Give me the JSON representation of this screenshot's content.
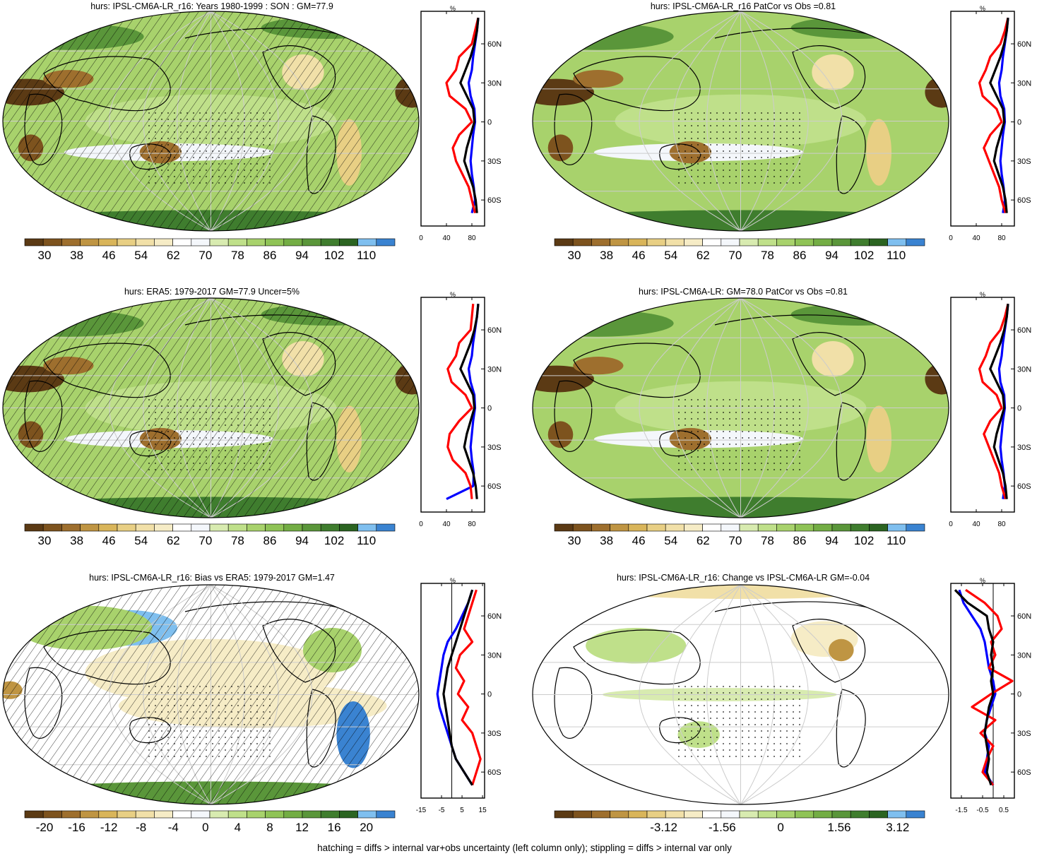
{
  "palette": [
    "#5b3a14",
    "#7d531e",
    "#9e6f2e",
    "#bf9543",
    "#d9b55a",
    "#e8cf84",
    "#f1e0a8",
    "#f6ecc6",
    "#ffffff",
    "#f4f7fb",
    "#d8ebb0",
    "#bfe08a",
    "#a8d26c",
    "#8fc356",
    "#73ad44",
    "#5a963a",
    "#3f7d2e",
    "#2b6421",
    "#7fbfef",
    "#3a83d1"
  ],
  "colors": {
    "obs_line": "#ff0000",
    "model_line": "#000000",
    "other_line": "#0000ff",
    "grid": "#cccccc",
    "coast": "#000000"
  },
  "panels": [
    {
      "title": "hurs: IPSL-CM6A-LR_r16: Years 1980-1999 : SON : GM=77.9",
      "cb_labels": [
        "30",
        "38",
        "46",
        "54",
        "62",
        "70",
        "78",
        "86",
        "94",
        "102",
        "110"
      ],
      "profile_xticks": [
        "0",
        "40",
        "80"
      ],
      "kind": "abs",
      "hatch": true
    },
    {
      "title": "hurs: IPSL-CM6A-LR_r16 PatCor vs Obs =0.81",
      "cb_labels": [
        "30",
        "38",
        "46",
        "54",
        "62",
        "70",
        "78",
        "86",
        "94",
        "102",
        "110"
      ],
      "profile_xticks": [
        "0",
        "40",
        "80"
      ],
      "kind": "abs",
      "hatch": false
    },
    {
      "title": "hurs: ERA5: 1979-2017 GM=77.9 Uncer=5%",
      "cb_labels": [
        "30",
        "38",
        "46",
        "54",
        "62",
        "70",
        "78",
        "86",
        "94",
        "102",
        "110"
      ],
      "profile_xticks": [
        "0",
        "40",
        "80"
      ],
      "kind": "abs",
      "hatch": true
    },
    {
      "title": "hurs: IPSL-CM6A-LR: GM=78.0 PatCor vs Obs =0.81",
      "cb_labels": [
        "30",
        "38",
        "46",
        "54",
        "62",
        "70",
        "78",
        "86",
        "94",
        "102",
        "110"
      ],
      "profile_xticks": [
        "0",
        "40",
        "80"
      ],
      "kind": "abs",
      "hatch": false
    },
    {
      "title": "hurs: IPSL-CM6A-LR_r16: Bias vs ERA5: 1979-2017  GM=1.47",
      "cb_labels": [
        "-20",
        "-16",
        "-12",
        "-8",
        "-4",
        "0",
        "4",
        "8",
        "12",
        "16",
        "20"
      ],
      "profile_xticks": [
        "-15",
        "-5",
        "5",
        "15"
      ],
      "kind": "bias",
      "hatch": true
    },
    {
      "title": "hurs: IPSL-CM6A-LR_r16: Change vs IPSL-CM6A-LR GM=-0.04",
      "cb_labels": [
        "-3.12",
        "-1.56",
        "0",
        "1.56",
        "3.12"
      ],
      "profile_xticks": [
        "-1.5",
        "-0.5",
        "0.5"
      ],
      "kind": "change",
      "hatch": false
    }
  ],
  "profile_unit": "%",
  "lat_labels": [
    "60N",
    "30N",
    "0",
    "30S",
    "60S"
  ],
  "footer": "hatching = diffs > internal var+obs uncertainty (left column only); stippling = diffs > internal var only",
  "chart_data": [
    {
      "type": "heatmap",
      "title": "hurs: IPSL-CM6A-LR_r16: Years 1980-1999 : SON : GM=77.9",
      "colorbar_ticks": [
        30,
        38,
        46,
        54,
        62,
        70,
        78,
        86,
        94,
        102,
        110
      ],
      "profile": {
        "lat_ticks": [
          "60N",
          "30N",
          "0",
          "30S",
          "60S"
        ],
        "x_ticks": [
          0,
          40,
          80
        ],
        "unit": "%",
        "series": [
          {
            "color": "red",
            "lat": [
              80,
              70,
              60,
              50,
              40,
              30,
              20,
              10,
              0,
              -10,
              -20,
              -30,
              -40,
              -50,
              -60,
              -70
            ],
            "values": [
              90,
              85,
              80,
              60,
              55,
              40,
              45,
              70,
              80,
              60,
              50,
              55,
              65,
              75,
              80,
              85
            ]
          },
          {
            "color": "black",
            "lat": [
              80,
              70,
              60,
              50,
              40,
              30,
              20,
              10,
              0,
              -10,
              -20,
              -30,
              -40,
              -50,
              -60,
              -70
            ],
            "values": [
              90,
              88,
              84,
              78,
              70,
              62,
              72,
              82,
              84,
              78,
              72,
              68,
              75,
              82,
              86,
              88
            ]
          },
          {
            "color": "blue",
            "lat": [
              80,
              70,
              60,
              50,
              40,
              30,
              20,
              10,
              0,
              -10,
              -20,
              -30,
              -40,
              -50,
              -60,
              -70
            ],
            "values": [
              90,
              88,
              85,
              82,
              80,
              75,
              78,
              84,
              85,
              82,
              80,
              78,
              80,
              83,
              85,
              80
            ]
          }
        ]
      }
    },
    {
      "type": "heatmap",
      "title": "hurs: IPSL-CM6A-LR_r16 PatCor vs Obs =0.81",
      "colorbar_ticks": [
        30,
        38,
        46,
        54,
        62,
        70,
        78,
        86,
        94,
        102,
        110
      ],
      "profile": {
        "lat_ticks": [
          "60N",
          "30N",
          "0",
          "30S",
          "60S"
        ],
        "x_ticks": [
          0,
          40,
          80
        ],
        "unit": "%",
        "series": [
          {
            "color": "red",
            "lat": [
              80,
              70,
              60,
              50,
              40,
              30,
              20,
              10,
              0,
              -10,
              -20,
              -30,
              -40,
              -50,
              -60,
              -70
            ],
            "values": [
              90,
              85,
              78,
              62,
              55,
              45,
              50,
              72,
              80,
              62,
              52,
              60,
              68,
              76,
              80,
              86
            ]
          },
          {
            "color": "black",
            "lat": [
              80,
              70,
              60,
              50,
              40,
              30,
              20,
              10,
              0,
              -10,
              -20,
              -30,
              -40,
              -50,
              -60,
              -70
            ],
            "values": [
              90,
              88,
              84,
              78,
              70,
              62,
              72,
              82,
              84,
              78,
              72,
              68,
              75,
              82,
              86,
              88
            ]
          },
          {
            "color": "blue",
            "lat": [
              80,
              70,
              60,
              50,
              40,
              30,
              20,
              10,
              0,
              -10,
              -20,
              -30,
              -40,
              -50,
              -60,
              -70
            ],
            "values": [
              90,
              88,
              85,
              82,
              80,
              76,
              78,
              84,
              85,
              82,
              80,
              78,
              80,
              83,
              85,
              82
            ]
          }
        ]
      }
    },
    {
      "type": "heatmap",
      "title": "hurs: ERA5: 1979-2017 GM=77.9 Uncer=5%",
      "colorbar_ticks": [
        30,
        38,
        46,
        54,
        62,
        70,
        78,
        86,
        94,
        102,
        110
      ],
      "profile": {
        "lat_ticks": [
          "60N",
          "30N",
          "0",
          "30S",
          "60S"
        ],
        "x_ticks": [
          0,
          40,
          80
        ],
        "unit": "%",
        "series": [
          {
            "color": "red",
            "lat": [
              80,
              70,
              60,
              50,
              40,
              30,
              20,
              10,
              0,
              -10,
              -20,
              -30,
              -40,
              -50,
              -60,
              -70
            ],
            "values": [
              82,
              80,
              78,
              60,
              55,
              42,
              48,
              70,
              80,
              60,
              45,
              42,
              50,
              70,
              78,
              80
            ]
          },
          {
            "color": "black",
            "lat": [
              80,
              70,
              60,
              50,
              40,
              30,
              20,
              10,
              0,
              -10,
              -20,
              -30,
              -40,
              -50,
              -60,
              -70
            ],
            "values": [
              90,
              88,
              84,
              78,
              70,
              62,
              72,
              82,
              84,
              78,
              72,
              68,
              75,
              82,
              86,
              88
            ]
          },
          {
            "color": "blue",
            "lat": [
              80,
              70,
              60,
              50,
              40,
              30,
              20,
              10,
              0,
              -10,
              -20,
              -30,
              -40,
              -50,
              -60,
              -70
            ],
            "values": [
              90,
              88,
              85,
              82,
              80,
              75,
              78,
              84,
              85,
              82,
              80,
              78,
              80,
              83,
              82,
              40
            ]
          }
        ]
      }
    },
    {
      "type": "heatmap",
      "title": "hurs: IPSL-CM6A-LR: GM=78.0 PatCor vs Obs =0.81",
      "colorbar_ticks": [
        30,
        38,
        46,
        54,
        62,
        70,
        78,
        86,
        94,
        102,
        110
      ],
      "profile": {
        "lat_ticks": [
          "60N",
          "30N",
          "0",
          "30S",
          "60S"
        ],
        "x_ticks": [
          0,
          40,
          80
        ],
        "unit": "%",
        "series": [
          {
            "color": "red",
            "lat": [
              80,
              70,
              60,
              50,
              40,
              30,
              20,
              10,
              0,
              -10,
              -20,
              -30,
              -40,
              -50,
              -60,
              -70
            ],
            "values": [
              90,
              85,
              78,
              62,
              55,
              45,
              50,
              72,
              80,
              62,
              52,
              60,
              68,
              76,
              80,
              86
            ]
          },
          {
            "color": "black",
            "lat": [
              80,
              70,
              60,
              50,
              40,
              30,
              20,
              10,
              0,
              -10,
              -20,
              -30,
              -40,
              -50,
              -60,
              -70
            ],
            "values": [
              90,
              88,
              84,
              78,
              70,
              62,
              72,
              82,
              84,
              78,
              72,
              68,
              75,
              82,
              86,
              88
            ]
          },
          {
            "color": "blue",
            "lat": [
              80,
              70,
              60,
              50,
              40,
              30,
              20,
              10,
              0,
              -10,
              -20,
              -30,
              -40,
              -50,
              -60,
              -70
            ],
            "values": [
              90,
              88,
              85,
              82,
              80,
              76,
              78,
              84,
              85,
              82,
              80,
              78,
              80,
              83,
              85,
              82
            ]
          }
        ]
      }
    },
    {
      "type": "heatmap",
      "title": "hurs: IPSL-CM6A-LR_r16: Bias vs ERA5: 1979-2017  GM=1.47",
      "colorbar_ticks": [
        -20,
        -16,
        -12,
        -8,
        -4,
        0,
        4,
        8,
        12,
        16,
        20
      ],
      "profile": {
        "lat_ticks": [
          "60N",
          "30N",
          "0",
          "30S",
          "60S"
        ],
        "x_ticks": [
          -15,
          -5,
          5,
          15
        ],
        "unit": "%",
        "series": [
          {
            "color": "red",
            "lat": [
              80,
              70,
              60,
              50,
              40,
              30,
              20,
              10,
              0,
              -10,
              -20,
              -30,
              -40,
              -50,
              -60,
              -70
            ],
            "values": [
              12,
              10,
              8,
              6,
              10,
              4,
              2,
              6,
              3,
              8,
              5,
              10,
              12,
              14,
              12,
              10
            ]
          },
          {
            "color": "black",
            "lat": [
              80,
              70,
              60,
              50,
              40,
              30,
              20,
              10,
              0,
              -10,
              -20,
              -30,
              -40,
              -50,
              -60,
              -70
            ],
            "values": [
              10,
              8,
              6,
              4,
              2,
              0,
              -2,
              -3,
              -4,
              -3,
              -2,
              -1,
              0,
              2,
              6,
              10
            ]
          },
          {
            "color": "blue",
            "lat": [
              80,
              70,
              60,
              50,
              40,
              30,
              20,
              10,
              0,
              -10,
              -20,
              -30,
              -40,
              -50,
              -60,
              -70
            ],
            "values": [
              10,
              8,
              5,
              2,
              -2,
              -4,
              -5,
              -6,
              -7,
              -6,
              -4,
              -2,
              0,
              2,
              6,
              10
            ]
          }
        ]
      }
    },
    {
      "type": "heatmap",
      "title": "hurs: IPSL-CM6A-LR_r16: Change vs IPSL-CM6A-LR GM=-0.04",
      "colorbar_ticks": [
        -3.12,
        -1.56,
        0,
        1.56,
        3.12
      ],
      "profile": {
        "lat_ticks": [
          "60N",
          "30N",
          "0",
          "30S",
          "60S"
        ],
        "x_ticks": [
          -1.5,
          -0.5,
          0.5
        ],
        "unit": "%",
        "series": [
          {
            "color": "red",
            "lat": [
              80,
              70,
              60,
              50,
              40,
              30,
              20,
              10,
              0,
              -10,
              -20,
              -30,
              -40,
              -50,
              -60,
              -70
            ],
            "values": [
              -1.3,
              -0.4,
              0.2,
              0.4,
              -0.1,
              0.1,
              -0.2,
              0.9,
              -0.1,
              -1.0,
              0.1,
              -0.6,
              0.0,
              -0.3,
              -0.5,
              0.0
            ]
          },
          {
            "color": "black",
            "lat": [
              80,
              70,
              60,
              50,
              40,
              30,
              20,
              10,
              0,
              -10,
              -20,
              -30,
              -40,
              -50,
              -60,
              -70
            ],
            "values": [
              -1.8,
              -1.2,
              -0.3,
              -0.2,
              0.0,
              -0.1,
              0.0,
              -0.1,
              0.0,
              -0.2,
              -0.3,
              -0.4,
              -0.3,
              -0.2,
              -0.3,
              -0.1
            ]
          },
          {
            "color": "blue",
            "lat": [
              80,
              70,
              60,
              50,
              40,
              30,
              20,
              10,
              0,
              -10,
              -20,
              -30,
              -40,
              -50,
              -60,
              -70
            ],
            "values": [
              -1.6,
              -1.4,
              -1.0,
              -0.6,
              -0.4,
              -0.3,
              -0.2,
              0.0,
              0.1,
              -0.1,
              -0.3,
              -0.4,
              -0.2,
              -0.3,
              -0.4,
              0.0
            ]
          }
        ]
      }
    }
  ]
}
